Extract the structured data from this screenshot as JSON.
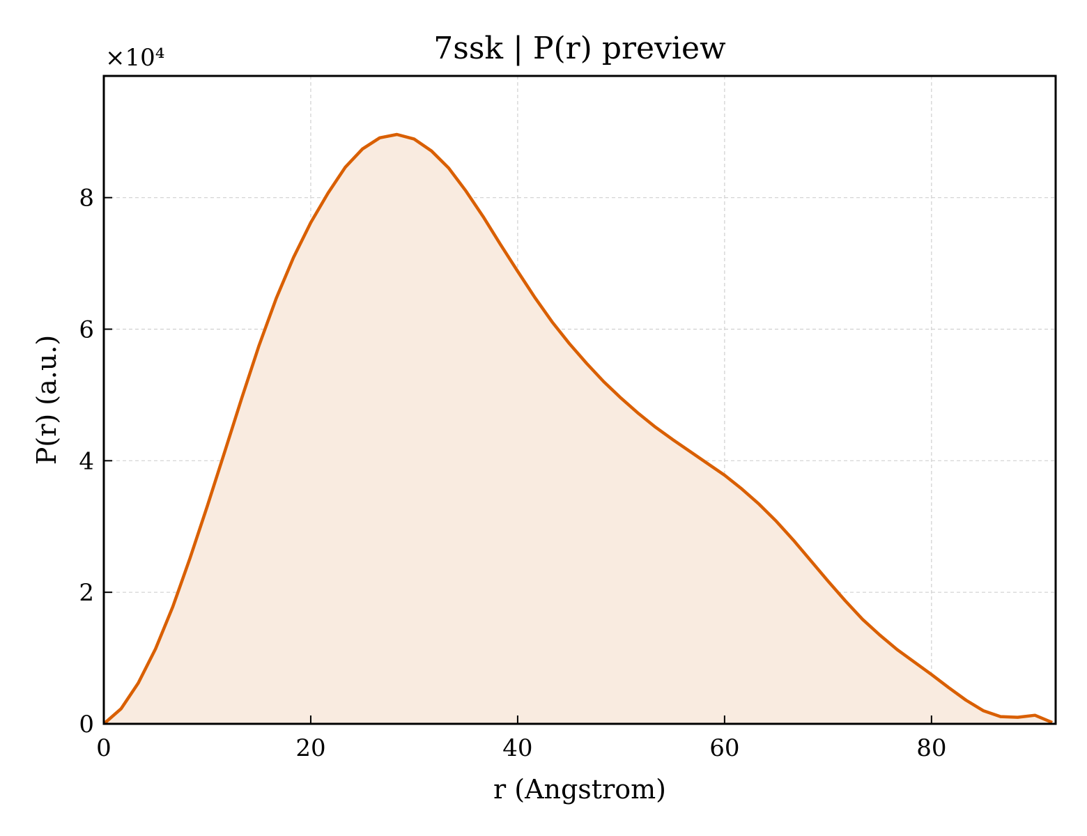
{
  "chart_data": {
    "type": "area",
    "title": "7ssk | P(r) preview",
    "xlabel": "r (Angstrom)",
    "ylabel": "P(r) (a.u.)",
    "y_offset_label": "×10⁴",
    "y_scale": 10000,
    "xlim": [
      0,
      92
    ],
    "ylim": [
      0,
      98500
    ],
    "x_ticks": [
      0,
      20,
      40,
      60,
      80
    ],
    "y_ticks": [
      0,
      20000,
      40000,
      60000,
      80000
    ],
    "y_tick_labels": [
      "0",
      "2",
      "4",
      "6",
      "8"
    ],
    "grid": true,
    "line_color": "#d95f02",
    "fill_color": "#f9ebe0",
    "series": [
      {
        "x": [
          0,
          1.67,
          3.33,
          5.0,
          6.67,
          8.33,
          10.0,
          11.67,
          13.33,
          15.0,
          16.67,
          18.33,
          20.0,
          21.67,
          23.33,
          25.0,
          26.67,
          28.33,
          30.0,
          31.67,
          33.33,
          35.0,
          36.67,
          38.33,
          40.0,
          41.67,
          43.33,
          45.0,
          46.67,
          48.33,
          50.0,
          51.67,
          53.33,
          55.0,
          56.67,
          58.33,
          60.0,
          61.67,
          63.33,
          65.0,
          66.67,
          68.33,
          70.0,
          71.67,
          73.33,
          75.0,
          76.67,
          78.33,
          80.0,
          81.67,
          83.33,
          85.0,
          86.67,
          88.33,
          90.0,
          91.67
        ],
        "y": [
          0,
          2300,
          6200,
          11400,
          17800,
          25200,
          33100,
          41300,
          49500,
          57500,
          64700,
          70900,
          76200,
          80700,
          84600,
          87400,
          89100,
          89600,
          88900,
          87100,
          84500,
          81000,
          77100,
          72900,
          68800,
          64800,
          61100,
          57800,
          54800,
          52000,
          49500,
          47200,
          45100,
          43200,
          41400,
          39600,
          37800,
          35700,
          33400,
          30800,
          27900,
          24800,
          21700,
          18700,
          15900,
          13500,
          11300,
          9400,
          7500,
          5500,
          3600,
          2000,
          1100,
          1000,
          1300,
          200
        ]
      }
    ]
  }
}
